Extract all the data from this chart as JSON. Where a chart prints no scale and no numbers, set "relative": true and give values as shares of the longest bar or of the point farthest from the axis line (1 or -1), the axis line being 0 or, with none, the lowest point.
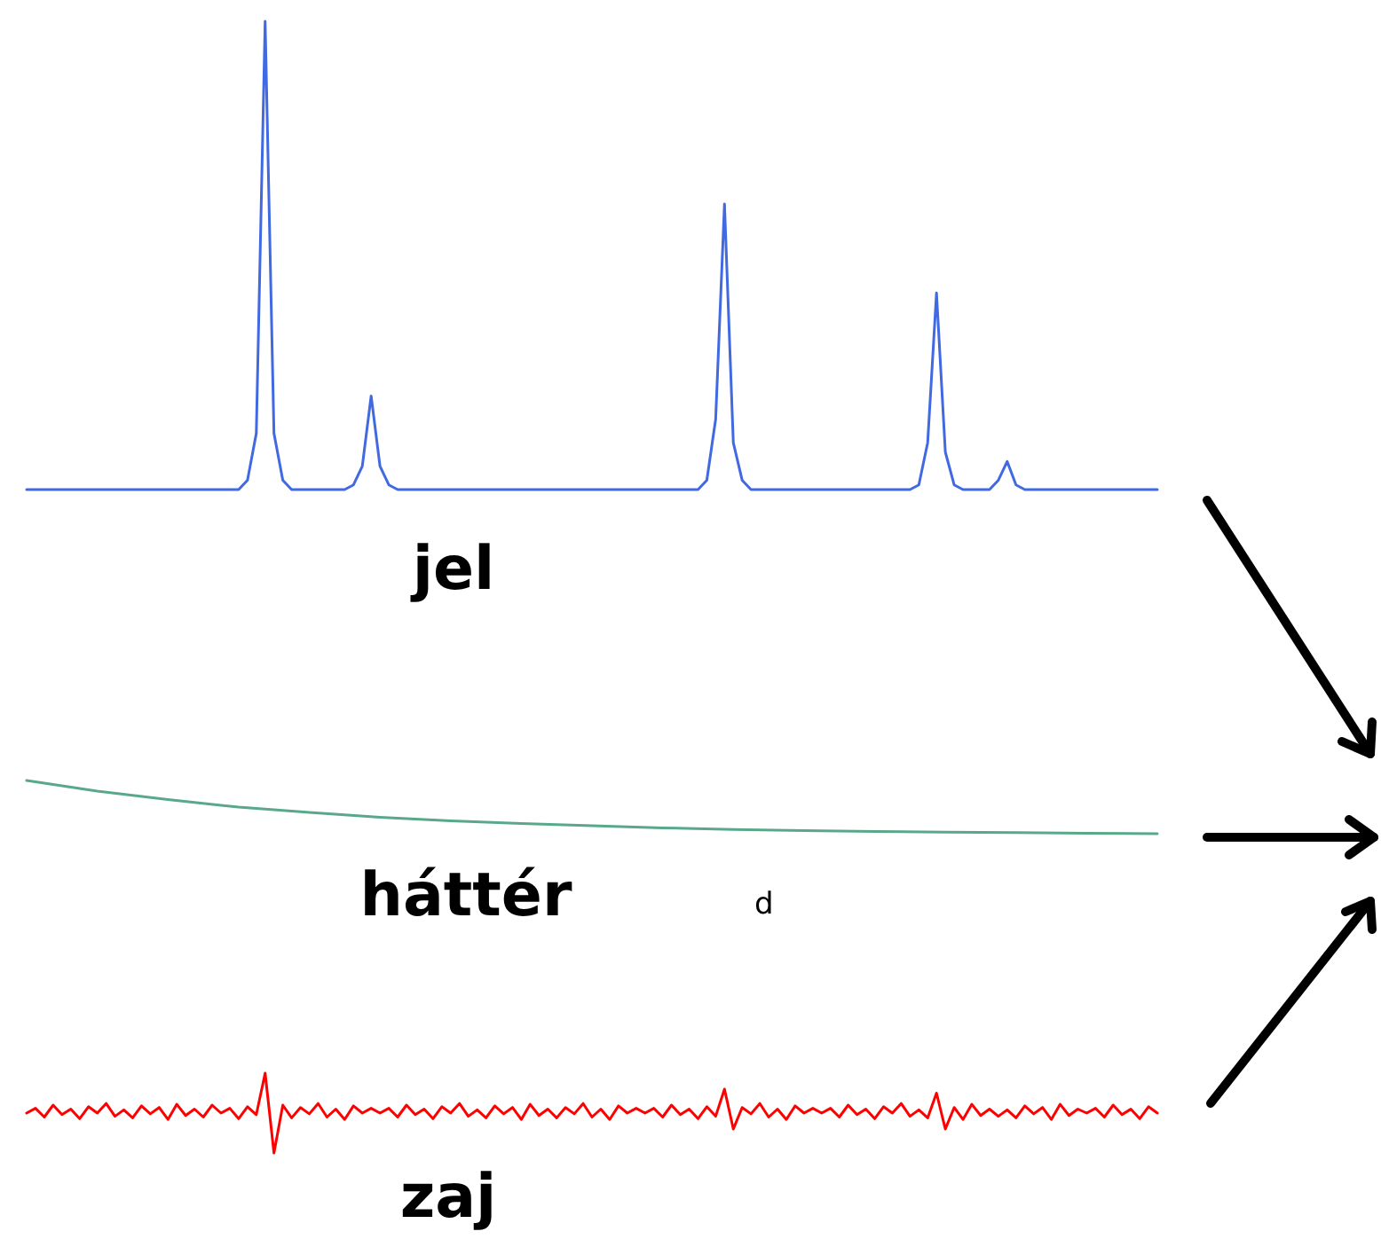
{
  "chart_data": [
    {
      "type": "line",
      "title": "jel",
      "relative": true,
      "categories": [
        null,
        null,
        null,
        null,
        null,
        null,
        null,
        null,
        null,
        null,
        null,
        null,
        null,
        null,
        null,
        null,
        null,
        null,
        null,
        null,
        null,
        null,
        null,
        null,
        null,
        null,
        null,
        null,
        null,
        null,
        null,
        null,
        null,
        null,
        null,
        null,
        null,
        null,
        null,
        null,
        null,
        null,
        null,
        null,
        null,
        null,
        null,
        null,
        null,
        null,
        null,
        null,
        null,
        null,
        null,
        null,
        null,
        null,
        null,
        null,
        null,
        null,
        null,
        null,
        null,
        null,
        null,
        null,
        null,
        null,
        null,
        null,
        null,
        null,
        null,
        null,
        null,
        null,
        null,
        null,
        null,
        null,
        null,
        null,
        null,
        null,
        null,
        null,
        null,
        null,
        null,
        null,
        null,
        null,
        null,
        null,
        null,
        null,
        null,
        null,
        null,
        null,
        null,
        null,
        null,
        null,
        null,
        null,
        null,
        null,
        null,
        null,
        null,
        null,
        null,
        null,
        null,
        null,
        null,
        null,
        null,
        null,
        null,
        null,
        null,
        null,
        null,
        null,
        null
      ],
      "series": [
        {
          "color": "#4169e1",
          "values": [
            0,
            0,
            0,
            0,
            0,
            0,
            0,
            0,
            0,
            0,
            0,
            0,
            0,
            0,
            0,
            0,
            0,
            0,
            0,
            0,
            0,
            0,
            0,
            0,
            0,
            0.02,
            0.12,
            1,
            0.12,
            0.02,
            0,
            0,
            0,
            0,
            0,
            0,
            0,
            0.01,
            0.05,
            0.2,
            0.05,
            0.01,
            0,
            0,
            0,
            0,
            0,
            0,
            0,
            0,
            0,
            0,
            0,
            0,
            0,
            0,
            0,
            0,
            0,
            0,
            0,
            0,
            0,
            0,
            0,
            0,
            0,
            0,
            0,
            0,
            0,
            0,
            0,
            0,
            0,
            0,
            0,
            0.02,
            0.15,
            0.61,
            0.1,
            0.02,
            0,
            0,
            0,
            0,
            0,
            0,
            0,
            0,
            0,
            0,
            0,
            0,
            0,
            0,
            0,
            0,
            0,
            0,
            0,
            0.01,
            0.1,
            0.42,
            0.08,
            0.01,
            0,
            0,
            0,
            0,
            0.02,
            0.06,
            0.01,
            0,
            0,
            0,
            0,
            0,
            0,
            0,
            0,
            0,
            0,
            0,
            0,
            0,
            0,
            0,
            0
          ]
        }
      ]
    },
    {
      "type": "line",
      "title": "háttér",
      "relative": true,
      "annotations": [
        "d"
      ],
      "categories": [
        null,
        null,
        null,
        null,
        null,
        null,
        null,
        null,
        null,
        null,
        null,
        null,
        null,
        null,
        null,
        null,
        null
      ],
      "series": [
        {
          "color": "#5aa88a",
          "values": [
            1,
            0.8,
            0.64,
            0.5,
            0.4,
            0.31,
            0.24,
            0.19,
            0.15,
            0.11,
            0.08,
            0.06,
            0.04,
            0.03,
            0.02,
            0.01,
            0
          ]
        }
      ]
    },
    {
      "type": "line",
      "title": "zaj",
      "relative": true,
      "categories": [
        null,
        null,
        null,
        null,
        null,
        null,
        null,
        null,
        null,
        null,
        null,
        null,
        null,
        null,
        null,
        null,
        null,
        null,
        null,
        null,
        null,
        null,
        null,
        null,
        null,
        null,
        null,
        null,
        null,
        null,
        null,
        null,
        null,
        null,
        null,
        null,
        null,
        null,
        null,
        null,
        null,
        null,
        null,
        null,
        null,
        null,
        null,
        null,
        null,
        null,
        null,
        null,
        null,
        null,
        null,
        null,
        null,
        null,
        null,
        null,
        null,
        null,
        null,
        null,
        null,
        null,
        null,
        null,
        null,
        null,
        null,
        null,
        null,
        null,
        null,
        null,
        null,
        null,
        null,
        null,
        null,
        null,
        null,
        null,
        null,
        null,
        null,
        null,
        null,
        null,
        null,
        null,
        null,
        null,
        null,
        null,
        null,
        null,
        null,
        null,
        null,
        null,
        null,
        null,
        null,
        null,
        null,
        null,
        null,
        null,
        null,
        null,
        null,
        null,
        null,
        null,
        null,
        null,
        null,
        null,
        null,
        null,
        null,
        null,
        null,
        null,
        null,
        null,
        null
      ],
      "series": [
        {
          "color": "#ff0000",
          "values": [
            0.5,
            0.56,
            0.45,
            0.6,
            0.48,
            0.55,
            0.43,
            0.58,
            0.5,
            0.62,
            0.46,
            0.54,
            0.44,
            0.59,
            0.49,
            0.57,
            0.42,
            0.61,
            0.47,
            0.55,
            0.45,
            0.6,
            0.5,
            0.56,
            0.43,
            0.58,
            0.48,
            1,
            0,
            0.6,
            0.44,
            0.57,
            0.49,
            0.62,
            0.45,
            0.55,
            0.42,
            0.59,
            0.5,
            0.56,
            0.5,
            0.56,
            0.45,
            0.6,
            0.48,
            0.55,
            0.43,
            0.58,
            0.5,
            0.62,
            0.46,
            0.54,
            0.44,
            0.59,
            0.49,
            0.57,
            0.42,
            0.61,
            0.47,
            0.55,
            0.44,
            0.57,
            0.49,
            0.62,
            0.45,
            0.55,
            0.42,
            0.59,
            0.5,
            0.56,
            0.5,
            0.56,
            0.45,
            0.6,
            0.48,
            0.55,
            0.43,
            0.58,
            0.46,
            0.8,
            0.3,
            0.57,
            0.49,
            0.62,
            0.45,
            0.55,
            0.42,
            0.59,
            0.5,
            0.56,
            0.5,
            0.56,
            0.45,
            0.6,
            0.48,
            0.55,
            0.43,
            0.58,
            0.5,
            0.62,
            0.46,
            0.54,
            0.44,
            0.75,
            0.3,
            0.57,
            0.42,
            0.61,
            0.47,
            0.55,
            0.46,
            0.54,
            0.44,
            0.59,
            0.49,
            0.57,
            0.42,
            0.61,
            0.47,
            0.55,
            0.5,
            0.56,
            0.45,
            0.6,
            0.48,
            0.55,
            0.43,
            0.58,
            0.5
          ]
        }
      ]
    }
  ]
}
